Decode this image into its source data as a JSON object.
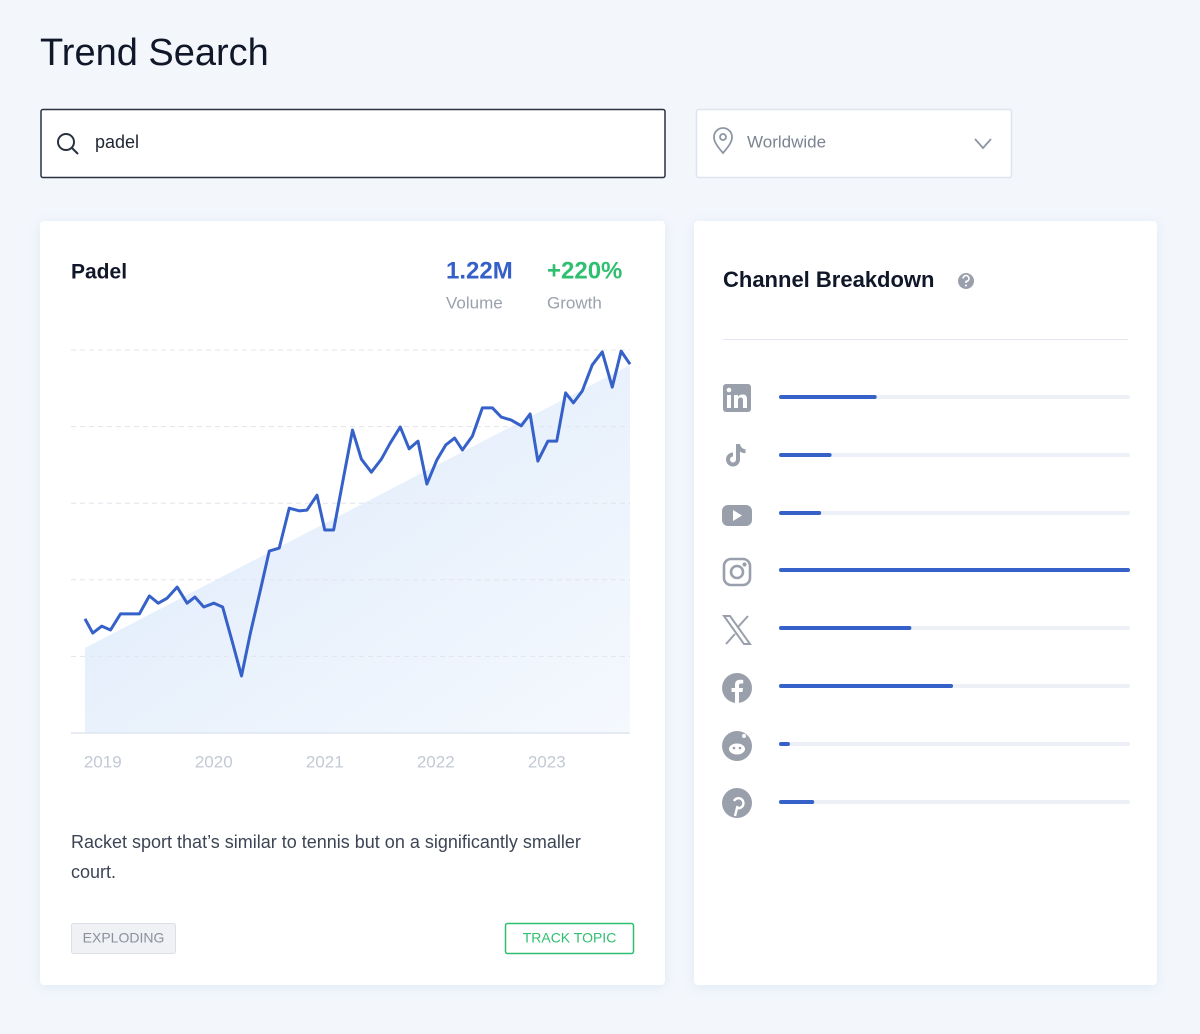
{
  "header": {
    "title": "Trend Search"
  },
  "search": {
    "query": "padel",
    "location": "Worldwide"
  },
  "topic": {
    "name": "Padel",
    "volume": "1.22M",
    "volume_label": "Volume",
    "growth": "+220%",
    "growth_label": "Growth",
    "description": [
      "Racket sport that’s similar to tennis but on a significantly smaller",
      "court."
    ],
    "status": "EXPLODING",
    "action": "TRACK TOPIC"
  },
  "chart_data": {
    "type": "line",
    "x": [
      2018.84,
      2018.91,
      2018.99,
      2019.07,
      2019.16,
      2019.25,
      2019.33,
      2019.42,
      2019.5,
      2019.58,
      2019.67,
      2019.76,
      2019.83,
      2019.91,
      2020.0,
      2020.08,
      2020.17,
      2020.25,
      2020.33,
      2020.42,
      2020.5,
      2020.59,
      2020.68,
      2020.77,
      2020.84,
      2020.93,
      2021.0,
      2021.08,
      2021.16,
      2021.25,
      2021.33,
      2021.42,
      2021.51,
      2021.59,
      2021.68,
      2021.76,
      2021.84,
      2021.92,
      2022.01,
      2022.09,
      2022.17,
      2022.24,
      2022.33,
      2022.42,
      2022.51,
      2022.59,
      2022.68,
      2022.77,
      2022.85,
      2022.92,
      2023.01,
      2023.09,
      2023.17,
      2023.24,
      2023.32,
      2023.41,
      2023.5,
      2023.59,
      2023.67,
      2023.75
    ],
    "values": [
      29.8,
      26.1,
      27.9,
      26.9,
      31.1,
      31.1,
      31.1,
      35.8,
      33.9,
      35.2,
      38.1,
      33.9,
      35.5,
      32.9,
      33.9,
      32.9,
      23.5,
      14.9,
      26.1,
      37.3,
      47.5,
      48.3,
      58.7,
      58.0,
      58.2,
      62.1,
      53.0,
      53.0,
      65.3,
      79.1,
      71.5,
      68.1,
      71.5,
      75.7,
      79.9,
      74.2,
      76.2,
      65.0,
      71.3,
      75.2,
      77.0,
      73.9,
      77.5,
      84.9,
      84.9,
      82.5,
      81.7,
      80.2,
      83.3,
      71.0,
      76.2,
      76.2,
      88.8,
      86.2,
      89.3,
      96.1,
      99.5,
      90.3,
      99.7,
      96.3
    ],
    "trend": [
      22.2,
      96.1
    ],
    "color": "#3561c8",
    "xlim": [
      2018.84,
      2023.75
    ],
    "xticks": [
      2019,
      2020,
      2021,
      2022,
      2023
    ],
    "ylim": [
      0,
      100
    ],
    "yticks": [
      20,
      40,
      60,
      80,
      100
    ],
    "grid": true
  },
  "channels": {
    "title": "Channel Breakdown",
    "values": [
      27,
      14,
      11,
      100,
      37,
      49,
      2,
      9
    ],
    "xlim": [
      0,
      100
    ],
    "color": "#3561c8"
  }
}
